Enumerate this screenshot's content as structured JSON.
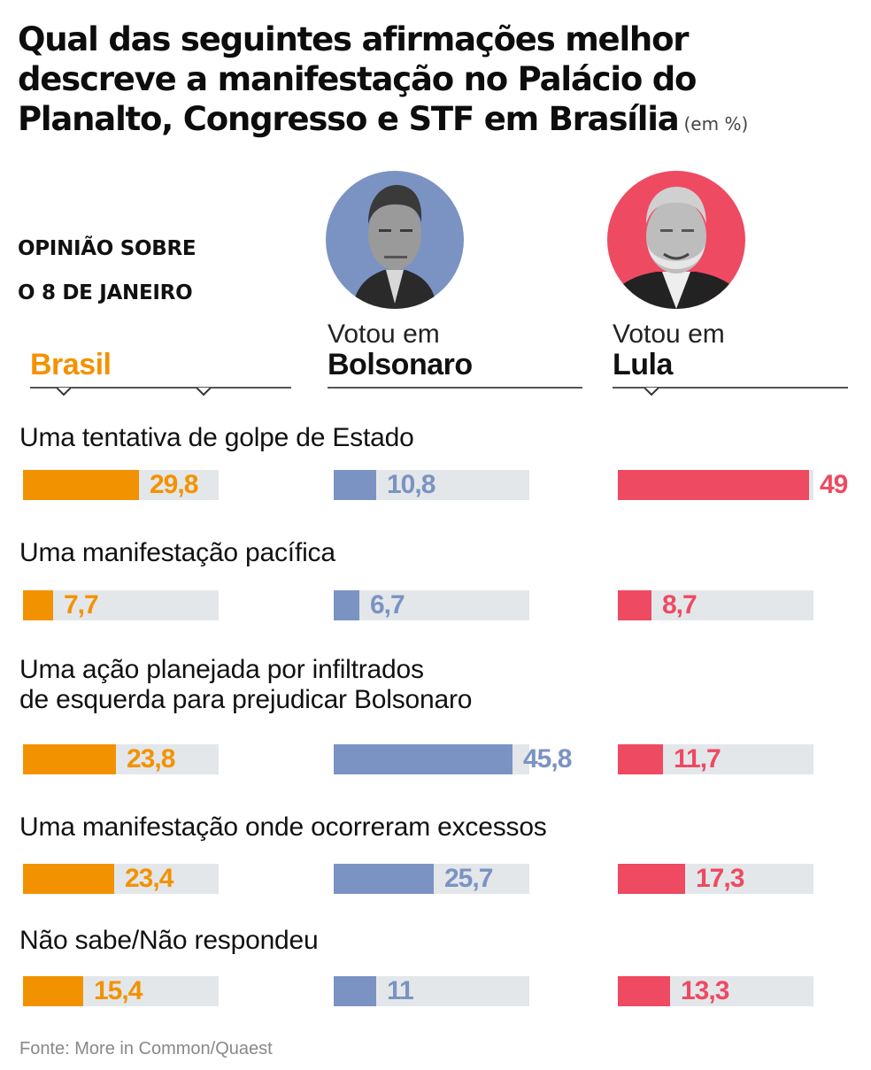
{
  "header": {
    "title": "Qual das seguintes afirmações melhor descreve a manifestação no Palácio do Planalto, Congresso e STF em Brasília",
    "title_lines": [
      "Qual das seguintes afirmações melhor",
      "descreve a manifestação no Palácio do",
      "Planalto, Congresso e STF em Brasília"
    ],
    "unit": "(em %)"
  },
  "subtitle": {
    "line1": "OPINIÃO SOBRE",
    "line2": "O 8 DE JANEIRO"
  },
  "columns": [
    {
      "key": "brasil",
      "pre": "",
      "name": "Brasil",
      "color": "#f39200",
      "value_color": "#f39200",
      "photo": null
    },
    {
      "key": "bolsonaro",
      "pre": "Votou em",
      "name": "Bolsonaro",
      "color": "#7b93c2",
      "value_color": "#7b93c2",
      "photo": "bolsonaro-portrait",
      "photo_bg": "#7b93c2"
    },
    {
      "key": "lula",
      "pre": "Votou em",
      "name": "Lula",
      "color": "#ee4a62",
      "value_color": "#ee4a62",
      "photo": "lula-portrait",
      "photo_bg": "#ee4a62"
    }
  ],
  "questions": [
    {
      "label_lines": [
        "Uma tentativa de golpe de Estado"
      ],
      "values": [
        29.8,
        10.8,
        49
      ],
      "labels": [
        "29,8",
        "10,8",
        "49"
      ]
    },
    {
      "label_lines": [
        "Uma manifestação pacífica"
      ],
      "values": [
        7.7,
        6.7,
        8.7
      ],
      "labels": [
        "7,7",
        "6,7",
        "8,7"
      ]
    },
    {
      "label_lines": [
        "Uma ação planejada por infiltrados",
        "de esquerda para prejudicar Bolsonaro"
      ],
      "values": [
        23.8,
        45.8,
        11.7
      ],
      "labels": [
        "23,8",
        "45,8",
        "11,7"
      ]
    },
    {
      "label_lines": [
        "Uma manifestação onde ocorreram excessos"
      ],
      "values": [
        23.4,
        25.7,
        17.3
      ],
      "labels": [
        "23,4",
        "25,7",
        "17,3"
      ]
    },
    {
      "label_lines": [
        "Não sabe/Não respondeu"
      ],
      "values": [
        15.4,
        11,
        13.3
      ],
      "labels": [
        "15,4",
        "11",
        "13,3"
      ]
    }
  ],
  "track_color": "#e3e7ea",
  "source": "Fonte: More in Common/Quaest",
  "chart_data": {
    "type": "bar",
    "title": "Qual das seguintes afirmações melhor descreve a manifestação no Palácio do Planalto, Congresso e STF em Brasília (em %)",
    "subtitle": "Opinião sobre o 8 de janeiro",
    "categories": [
      "Uma tentativa de golpe de Estado",
      "Uma manifestação pacífica",
      "Uma ação planejada por infiltrados de esquerda para prejudicar Bolsonaro",
      "Uma manifestação onde ocorreram excessos",
      "Não sabe/Não respondeu"
    ],
    "series": [
      {
        "name": "Brasil",
        "color": "#f39200",
        "values": [
          29.8,
          7.7,
          23.8,
          23.4,
          15.4
        ]
      },
      {
        "name": "Votou em Bolsonaro",
        "color": "#7b93c2",
        "values": [
          10.8,
          6.7,
          45.8,
          25.7,
          11
        ]
      },
      {
        "name": "Votou em Lula",
        "color": "#ee4a62",
        "values": [
          49,
          8.7,
          11.7,
          17.3,
          13.3
        ]
      }
    ],
    "orientation": "horizontal",
    "xlabel": "",
    "ylabel": "%",
    "xlim": [
      0,
      50
    ],
    "grid": false,
    "legend": "column headers",
    "source": "Fonte: More in Common/Quaest"
  }
}
